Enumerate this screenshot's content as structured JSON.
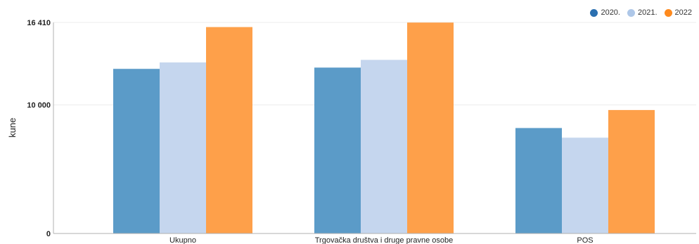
{
  "chart_data": {
    "type": "bar",
    "title": "",
    "xlabel": "",
    "ylabel": "kune",
    "ylim": [
      0,
      16410
    ],
    "y_ticks": [
      {
        "value": 0,
        "label": "0"
      },
      {
        "value": 10000,
        "label": "10 000"
      },
      {
        "value": 16410,
        "label": "16 410"
      }
    ],
    "categories": [
      "Ukupno",
      "Trgovačka društva i druge pravne osobe",
      "POS"
    ],
    "series": [
      {
        "name": "2020.",
        "values": [
          12800,
          12900,
          8200
        ],
        "color": "#5b9bc8",
        "legend_color": "#2a6fb0"
      },
      {
        "name": "2021.",
        "values": [
          13300,
          13500,
          7450
        ],
        "color": "#c5d6ee",
        "legend_color": "#aec7e8"
      },
      {
        "name": "2022",
        "values": [
          16050,
          16400,
          9600
        ],
        "color": "#fea04a",
        "legend_color": "#fe8a1e"
      }
    ],
    "grid": true,
    "legend_position": "top-right"
  }
}
